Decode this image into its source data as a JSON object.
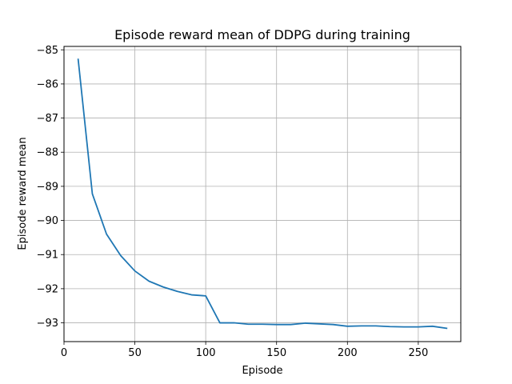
{
  "chart_data": {
    "type": "line",
    "title": "Episode reward mean of DDPG during training",
    "xlabel": "Episode",
    "ylabel": "Episode reward mean",
    "xlim": [
      0,
      280
    ],
    "ylim": [
      -93.55,
      -84.9
    ],
    "xticks": [
      0,
      50,
      100,
      150,
      200,
      250
    ],
    "yticks": [
      -93,
      -92,
      -91,
      -90,
      -89,
      -88,
      -87,
      -86,
      -85
    ],
    "grid": true,
    "series": [
      {
        "color": "#1f77b4",
        "x": [
          10,
          20,
          30,
          40,
          50,
          60,
          70,
          80,
          90,
          100,
          110,
          120,
          130,
          140,
          150,
          160,
          170,
          180,
          190,
          200,
          210,
          220,
          230,
          240,
          250,
          260,
          270
        ],
        "y": [
          -85.28,
          -89.22,
          -90.4,
          -91.03,
          -91.48,
          -91.78,
          -91.95,
          -92.08,
          -92.18,
          -92.21,
          -93.0,
          -93.0,
          -93.04,
          -93.04,
          -93.05,
          -93.05,
          -93.01,
          -93.03,
          -93.05,
          -93.1,
          -93.09,
          -93.09,
          -93.11,
          -93.12,
          -93.12,
          -93.1,
          -93.16
        ]
      }
    ]
  }
}
